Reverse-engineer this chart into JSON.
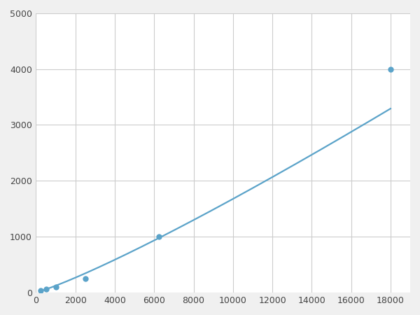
{
  "x_points": [
    250,
    500,
    1000,
    2500,
    6250,
    18000
  ],
  "y_points": [
    30,
    55,
    100,
    250,
    1000,
    4000
  ],
  "line_color": "#5ba3c9",
  "marker_color": "#5ba3c9",
  "marker_size": 6,
  "line_width": 1.6,
  "xlim": [
    0,
    19000
  ],
  "ylim": [
    0,
    5000
  ],
  "xticks": [
    0,
    2000,
    4000,
    6000,
    8000,
    10000,
    12000,
    14000,
    16000,
    18000
  ],
  "yticks": [
    0,
    1000,
    2000,
    3000,
    4000,
    5000
  ],
  "grid_color": "#cccccc",
  "background_color": "#ffffff",
  "figure_background": "#f0f0f0"
}
